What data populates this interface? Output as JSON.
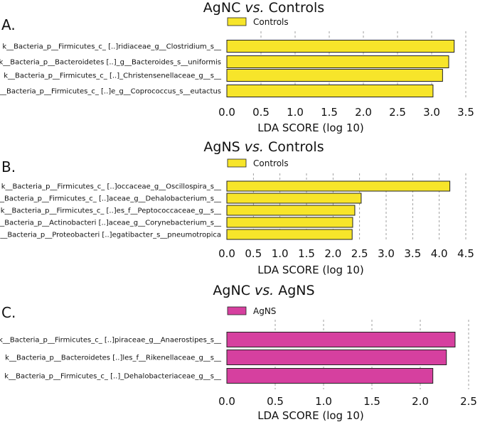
{
  "chart_data": [
    {
      "type": "bar",
      "orientation": "horizontal",
      "panel_label": "A.",
      "title_prefix": "AgNC ",
      "title_vs": "vs.",
      "title_suffix": " Controls",
      "legend": "Controls",
      "bar_color": "#f7e52a",
      "xlabel": "LDA SCORE (log 10)",
      "xlim": [
        0,
        3.5
      ],
      "xticks": [
        "0.0",
        "0.5",
        "1.0",
        "1.5",
        "2.0",
        "2.5",
        "3.0",
        "3.5"
      ],
      "categories": [
        "k__Bacteria_p__Firmicutes_c_ [..]ridiaceae_g__Clostridium_s__",
        "k__Bacteria_p__Bacteroidetes [..]_g__Bacteroides_s__uniformis",
        "k__Bacteria_p__Firmicutes_c_ [..]_Christensenellaceae_g__s__",
        "k__Bacteria_p__Firmicutes_c_ [..]e_g__Coprococcus_s__eutactus"
      ],
      "values": [
        3.33,
        3.25,
        3.16,
        3.02
      ],
      "grid": true
    },
    {
      "type": "bar",
      "orientation": "horizontal",
      "panel_label": "B.",
      "title_prefix": "AgNS ",
      "title_vs": "vs.",
      "title_suffix": " Controls",
      "legend": "Controls",
      "bar_color": "#f7e52a",
      "xlabel": "LDA SCORE (log 10)",
      "xlim": [
        0,
        4.5
      ],
      "xticks": [
        "0.0",
        "0.5",
        "1.0",
        "1.5",
        "2.0",
        "2.5",
        "3.0",
        "3.5",
        "4.0",
        "4.5"
      ],
      "categories": [
        "k__Bacteria_p__Firmicutes_c_ [..]occaceae_g__Oscillospira_s__",
        "k__Bacteria_p__Firmicutes_c_ [..]aceae_g__Dehalobacterium_s__",
        "k__Bacteria_p__Firmicutes_c_ [..]es_f__Peptococcaceae_g__s__",
        "k__Bacteria_p__Actinobacteri [..]aceae_g__Corynebacterium_s__",
        "k__Bacteria_p__Proteobacteri [..]egatibacter_s__pneumotropica"
      ],
      "values": [
        4.2,
        2.53,
        2.41,
        2.37,
        2.36
      ],
      "grid": true
    },
    {
      "type": "bar",
      "orientation": "horizontal",
      "panel_label": "C.",
      "title_prefix": "AgNC ",
      "title_vs": "vs.",
      "title_suffix": " AgNS",
      "legend": "AgNS",
      "bar_color": "#d6409f",
      "xlabel": "LDA SCORE (log 10)",
      "xlim": [
        0,
        2.5
      ],
      "xticks": [
        "0.0",
        "0.5",
        "1.0",
        "1.5",
        "2.0",
        "2.5"
      ],
      "categories": [
        "k__Bacteria_p__Firmicutes_c_ [..]piraceae_g__Anaerostipes_s__",
        "k__Bacteria_p__Bacteroidetes [..]les_f__Rikenellaceae_g__s__",
        "k__Bacteria_p__Firmicutes_c_ [..]_Dehalobacteriaceae_g__s__"
      ],
      "values": [
        2.36,
        2.27,
        2.13
      ],
      "grid": true
    }
  ]
}
